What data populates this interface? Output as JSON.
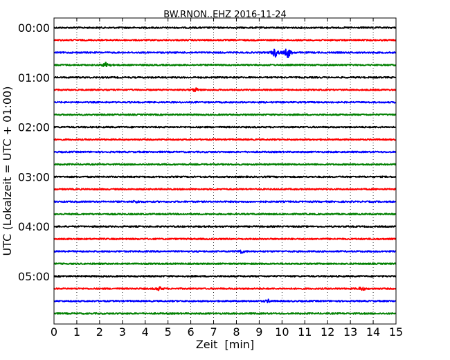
{
  "chart_data": {
    "type": "line",
    "title": "BW.RNON..EHZ 2016-11-24",
    "xlabel": "Zeit  [min]",
    "ylabel": "UTC (Lokalzeit = UTC + 01:00)",
    "xlim": [
      0,
      15
    ],
    "x_ticks": [
      0,
      1,
      2,
      3,
      4,
      5,
      6,
      7,
      8,
      9,
      10,
      11,
      12,
      13,
      14,
      15
    ],
    "x_tick_labels": [
      "0",
      "1",
      "2",
      "3",
      "4",
      "5",
      "6",
      "7",
      "8",
      "9",
      "10",
      "11",
      "12",
      "13",
      "14",
      "15"
    ],
    "vertical_grid": "dotted",
    "y_tick_labels": [
      "00:00",
      "01:00",
      "02:00",
      "03:00",
      "04:00",
      "05:00"
    ],
    "y_tick_every_n_rows": 4,
    "row_minutes": 15,
    "color_cycle": [
      "#000000",
      "#ff0000",
      "#0000ff",
      "#008000"
    ],
    "rows": [
      {
        "start": "00:00",
        "events": []
      },
      {
        "start": "00:15",
        "events": []
      },
      {
        "start": "00:30",
        "events": [
          {
            "x": 9.7,
            "amp": 7
          },
          {
            "x": 10.25,
            "amp": 9
          }
        ]
      },
      {
        "start": "00:45",
        "events": [
          {
            "x": 2.3,
            "amp": 5
          }
        ]
      },
      {
        "start": "01:00",
        "events": []
      },
      {
        "start": "01:15",
        "events": [
          {
            "x": 6.2,
            "amp": 3
          }
        ]
      },
      {
        "start": "01:30",
        "events": []
      },
      {
        "start": "01:45",
        "events": []
      },
      {
        "start": "02:00",
        "events": []
      },
      {
        "start": "02:15",
        "events": []
      },
      {
        "start": "02:30",
        "events": []
      },
      {
        "start": "02:45",
        "events": []
      },
      {
        "start": "03:00",
        "events": []
      },
      {
        "start": "03:15",
        "events": []
      },
      {
        "start": "03:30",
        "events": [
          {
            "x": 3.6,
            "amp": 2
          }
        ]
      },
      {
        "start": "03:45",
        "events": []
      },
      {
        "start": "04:00",
        "events": []
      },
      {
        "start": "04:15",
        "events": []
      },
      {
        "start": "04:30",
        "events": [
          {
            "x": 8.2,
            "amp": 3
          }
        ]
      },
      {
        "start": "04:45",
        "events": []
      },
      {
        "start": "05:00",
        "events": []
      },
      {
        "start": "05:15",
        "events": [
          {
            "x": 4.6,
            "amp": 3
          },
          {
            "x": 13.5,
            "amp": 3
          }
        ]
      },
      {
        "start": "05:30",
        "events": [
          {
            "x": 9.4,
            "amp": 2
          }
        ]
      },
      {
        "start": "05:45",
        "events": []
      }
    ]
  }
}
